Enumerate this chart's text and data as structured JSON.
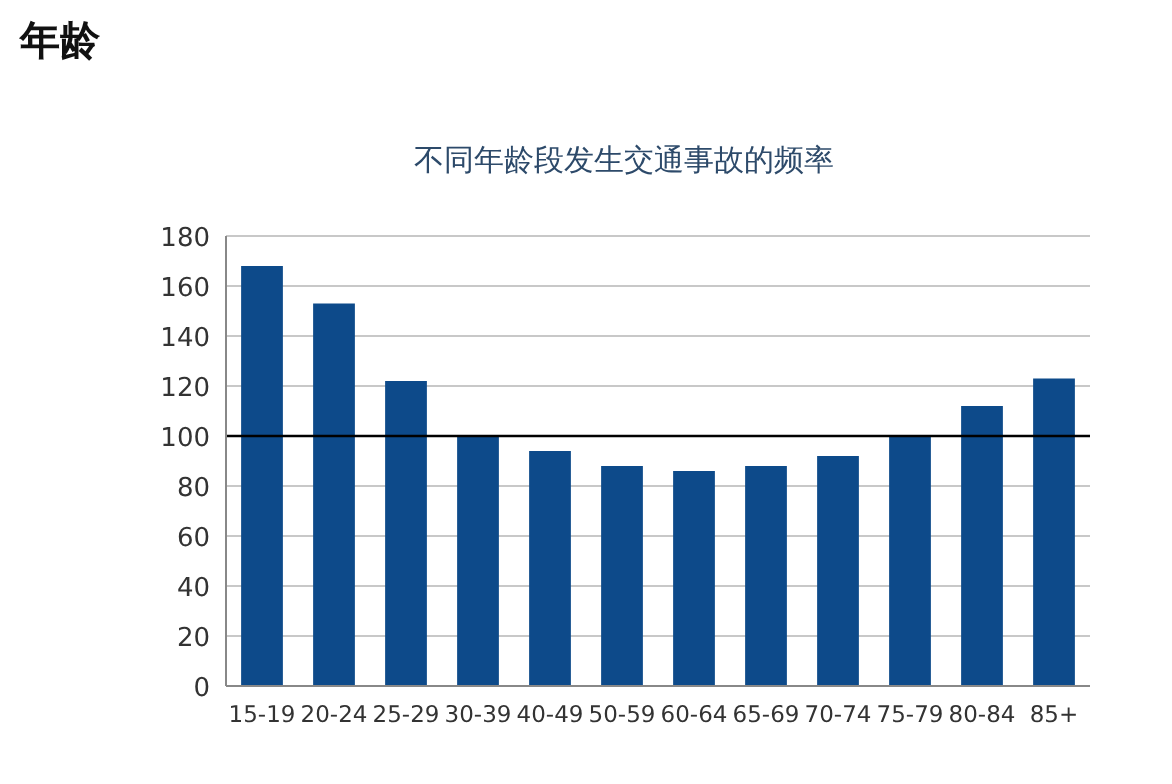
{
  "chart_data": {
    "type": "bar",
    "title": "年龄",
    "subtitle": "不同年龄段发生交通事故的频率",
    "categories": [
      "15-19",
      "20-24",
      "25-29",
      "30-39",
      "40-49",
      "50-59",
      "60-64",
      "65-69",
      "70-74",
      "75-79",
      "80-84",
      "85+"
    ],
    "values": [
      168,
      153,
      122,
      100,
      94,
      88,
      86,
      88,
      92,
      100,
      112,
      123
    ],
    "color": "#0d4a8a",
    "ylim": [
      0,
      180
    ],
    "yticks": [
      0,
      20,
      40,
      60,
      80,
      100,
      120,
      140,
      160,
      180
    ],
    "grid": "y",
    "ref_lines": [
      {
        "axis": "y",
        "value": 100,
        "color": "#000000"
      }
    ]
  }
}
